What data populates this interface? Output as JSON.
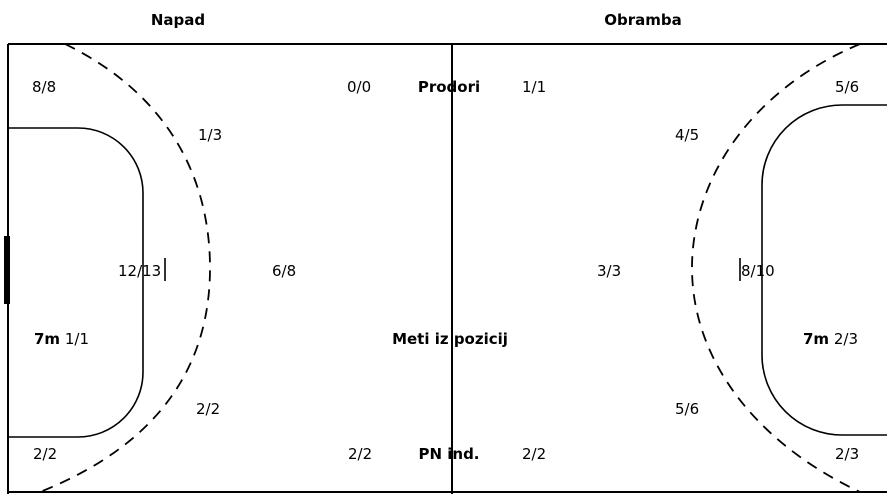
{
  "headers": {
    "attack": "Napad",
    "defense": "Obramba"
  },
  "categories": {
    "breakthroughs": "Prodori",
    "position_shots": "Meti iz pozicij",
    "individual_counterattack": "PN ind."
  },
  "seven_m_label": "7m",
  "napad": {
    "left_wing_top": "8/8",
    "center_backcourt_top": "0/0",
    "backcourt_left": "1/3",
    "pivot_six": "12/13",
    "backcourt_center": "6/8",
    "seven_m": "1/1",
    "backcourt_right": "2/2",
    "right_wing_bottom": "2/2",
    "counter_bottom": "2/2"
  },
  "obramba": {
    "breakthroughs": "1/1",
    "right_wing_top": "5/6",
    "backcourt_left": "4/5",
    "backcourt_center": "3/3",
    "pivot_six": "8/10",
    "seven_m": "2/3",
    "backcourt_right": "5/6",
    "counter_bottom": "2/2",
    "right_wing_bottom": "2/3"
  },
  "colors": {
    "lines": "#000000",
    "background": "#ffffff"
  }
}
